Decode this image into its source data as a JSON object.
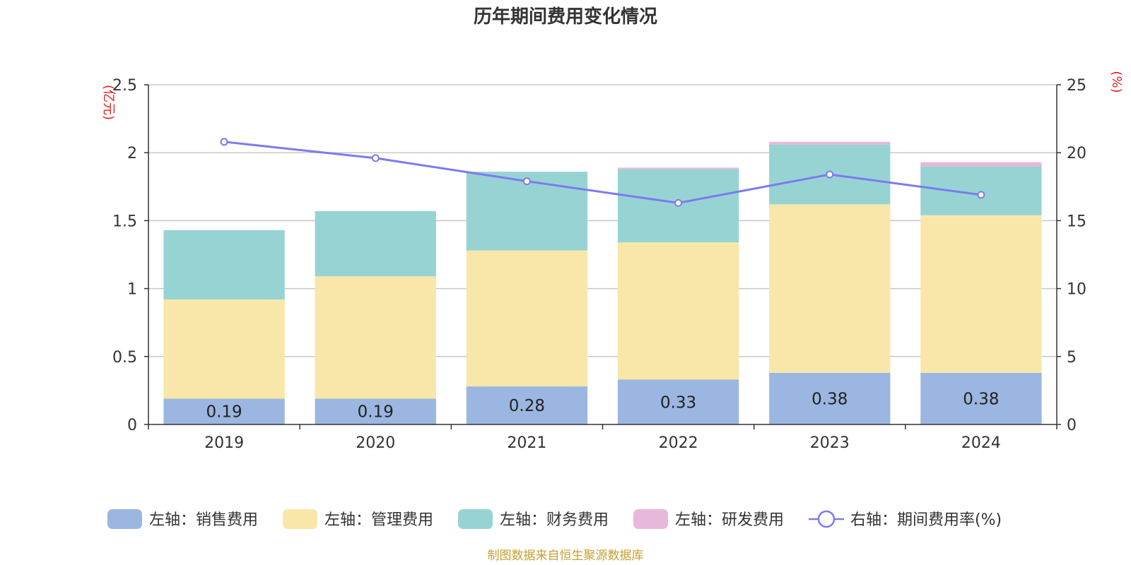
{
  "chart_data": {
    "type": "bar",
    "title": "历年期间费用变化情况",
    "categories": [
      "2019",
      "2020",
      "2021",
      "2022",
      "2023",
      "2024"
    ],
    "left_axis": {
      "unit_label": "(亿元)",
      "ylim": [
        0,
        2.5
      ],
      "ticks": [
        "0",
        "0.5",
        "1",
        "1.5",
        "2",
        "2.5"
      ]
    },
    "right_axis": {
      "unit_label": "(%)",
      "ylim": [
        0,
        25
      ],
      "ticks": [
        "0",
        "5",
        "10",
        "15",
        "20",
        "25"
      ]
    },
    "stacked": true,
    "series": [
      {
        "name": "左轴：销售费用",
        "axis": "left",
        "type": "bar",
        "color": "#9bb6e0",
        "values": [
          0.19,
          0.19,
          0.28,
          0.33,
          0.38,
          0.38
        ],
        "labels": [
          "0.19",
          "0.19",
          "0.28",
          "0.33",
          "0.38",
          "0.38"
        ]
      },
      {
        "name": "左轴：管理费用",
        "axis": "left",
        "type": "bar",
        "color": "#f8e7a8",
        "values": [
          0.73,
          0.9,
          1.0,
          1.01,
          1.24,
          1.16
        ]
      },
      {
        "name": "左轴：财务费用",
        "axis": "left",
        "type": "bar",
        "color": "#98d3d4",
        "values": [
          0.51,
          0.48,
          0.58,
          0.54,
          0.44,
          0.36
        ]
      },
      {
        "name": "左轴：研发费用",
        "axis": "left",
        "type": "bar",
        "color": "#e8b8da",
        "values": [
          0.0,
          0.0,
          0.0,
          0.01,
          0.02,
          0.03
        ]
      },
      {
        "name": "右轴：期间费用率(%)",
        "axis": "right",
        "type": "line",
        "color": "#7b7bee",
        "values": [
          20.8,
          19.6,
          17.9,
          16.3,
          18.4,
          16.9
        ]
      }
    ],
    "grid": true,
    "legend_position": "bottom"
  },
  "footer": {
    "source": "制图数据来自恒生聚源数据库"
  }
}
